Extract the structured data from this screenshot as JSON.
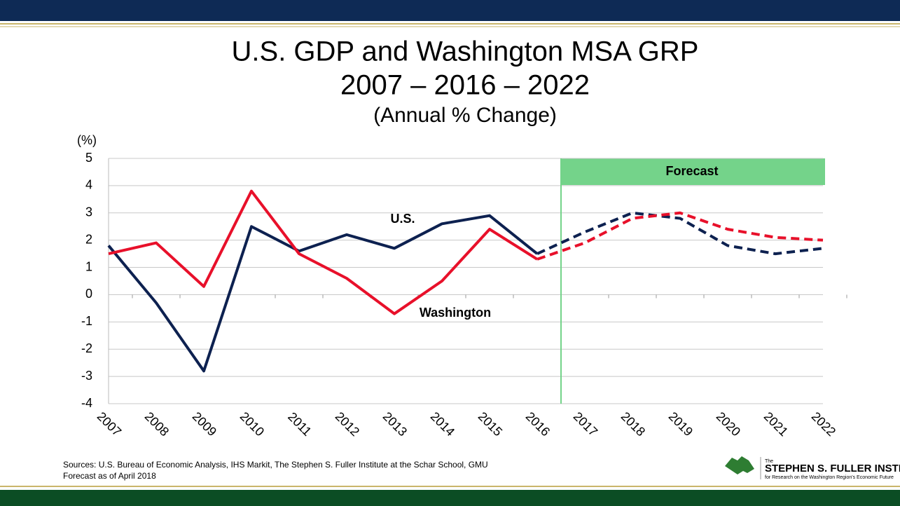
{
  "chart_data": {
    "type": "line",
    "title": [
      "U.S. GDP and Washington MSA GRP",
      "2007 – 2016 – 2022"
    ],
    "subtitle": "(Annual % Change)",
    "y_label": "(%)",
    "categories": [
      "2007",
      "2008",
      "2009",
      "2010",
      "2011",
      "2012",
      "2013",
      "2014",
      "2015",
      "2016",
      "2017",
      "2018",
      "2019",
      "2020",
      "2021",
      "2022"
    ],
    "series": [
      {
        "name": "U.S.",
        "color": "#0d2150",
        "values": [
          1.8,
          -0.3,
          -2.8,
          2.5,
          1.6,
          2.2,
          1.7,
          2.6,
          2.9,
          1.5,
          2.3,
          3.0,
          2.8,
          1.8,
          1.5,
          1.7
        ]
      },
      {
        "name": "Washington",
        "color": "#e8102a",
        "values": [
          1.5,
          1.9,
          0.3,
          3.8,
          1.5,
          0.6,
          -0.7,
          0.5,
          2.4,
          1.3,
          1.9,
          2.8,
          3.0,
          2.4,
          2.1,
          2.0
        ]
      }
    ],
    "forecast": {
      "label": "Forecast",
      "from": "2017",
      "color": "#74d38a"
    },
    "ylim": [
      -4,
      5
    ],
    "yticks": [
      -4,
      -3,
      -2,
      -1,
      0,
      1,
      2,
      3,
      4,
      5
    ],
    "grid": true
  },
  "footer": {
    "sources": "Sources: U.S. Bureau of Economic Analysis, IHS Markit, The Stephen S. Fuller Institute at the Schar School, GMU",
    "note": "Forecast as of April 2018",
    "logo": {
      "pre": "The",
      "name": "STEPHEN S. FULLER INSTITUTE",
      "tagline": "for Research on the Washington Region's Economic Future"
    }
  }
}
